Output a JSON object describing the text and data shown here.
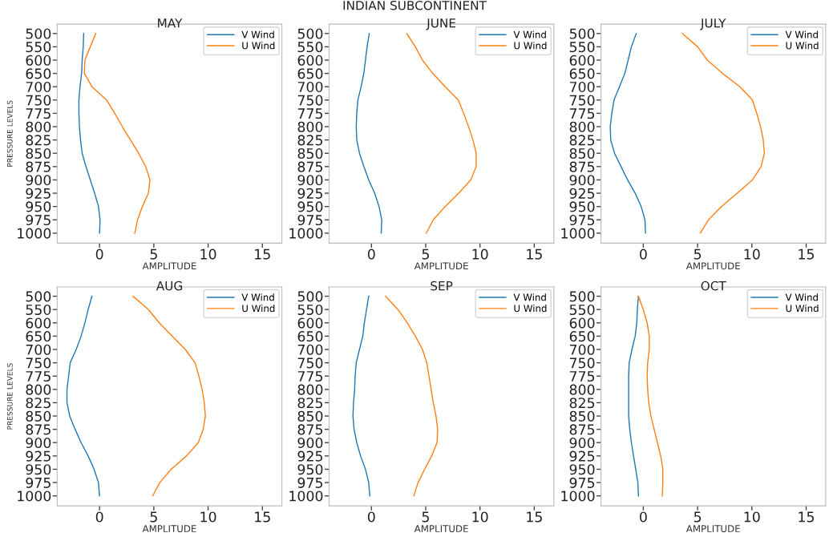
{
  "chart_data": [
    {
      "type": "line",
      "orientation": "horizontal",
      "title": "MAY",
      "xlabel": "AMPLITUDE",
      "ylabel": "PRESSURE LEVELS",
      "annotations": [
        "INDIAN SUBCONTINENT"
      ],
      "legend": "top right",
      "xlim": [
        -3.9,
        16.8
      ],
      "xticks": [
        0,
        5,
        10,
        15
      ],
      "categories": [
        "500",
        "550",
        "600",
        "650",
        "700",
        "750",
        "775",
        "800",
        "825",
        "850",
        "875",
        "900",
        "925",
        "950",
        "975",
        "1000"
      ],
      "series": [
        {
          "name": "V Wind",
          "color": "#1f77b4",
          "values": [
            -1.46,
            -1.5,
            -1.6,
            -1.65,
            -1.8,
            -1.9,
            -1.9,
            -1.85,
            -1.75,
            -1.6,
            -1.25,
            -0.85,
            -0.45,
            -0.1,
            0.05,
            0
          ]
        },
        {
          "name": "U Wind",
          "color": "#ff7f0e",
          "values": [
            -0.35,
            -0.85,
            -1.35,
            -1.4,
            -0.7,
            0.65,
            1.4,
            2.1,
            2.85,
            3.6,
            4.25,
            4.65,
            4.5,
            3.95,
            3.5,
            3.25
          ]
        }
      ]
    },
    {
      "type": "line",
      "orientation": "horizontal",
      "title": "JUNE",
      "xlabel": "AMPLITUDE",
      "legend": "top right",
      "xlim": [
        -3.9,
        16.8
      ],
      "xticks": [
        0,
        5,
        10,
        15
      ],
      "categories": [
        "500",
        "550",
        "600",
        "650",
        "700",
        "750",
        "775",
        "800",
        "825",
        "850",
        "875",
        "900",
        "925",
        "950",
        "975",
        "1000"
      ],
      "series": [
        {
          "name": "V Wind",
          "color": "#1f77b4",
          "values": [
            -0.2,
            -0.4,
            -0.55,
            -0.7,
            -0.95,
            -1.25,
            -1.35,
            -1.4,
            -1.35,
            -1.1,
            -0.7,
            -0.25,
            0.3,
            0.7,
            0.95,
            0.9
          ]
        },
        {
          "name": "U Wind",
          "color": "#ff7f0e",
          "values": [
            3.25,
            4.05,
            4.7,
            5.65,
            6.8,
            8.0,
            8.5,
            8.95,
            9.35,
            9.65,
            9.65,
            9.15,
            8.05,
            6.8,
            5.7,
            5.05
          ]
        }
      ]
    },
    {
      "type": "line",
      "orientation": "horizontal",
      "title": "JULY",
      "xlabel": "AMPLITUDE",
      "legend": "top right",
      "xlim": [
        -3.9,
        16.8
      ],
      "xticks": [
        0,
        5,
        10,
        15
      ],
      "categories": [
        "500",
        "550",
        "600",
        "650",
        "700",
        "750",
        "775",
        "800",
        "825",
        "850",
        "875",
        "900",
        "925",
        "950",
        "975",
        "1000"
      ],
      "series": [
        {
          "name": "V Wind",
          "color": "#1f77b4",
          "values": [
            -0.65,
            -1.1,
            -1.4,
            -1.7,
            -2.2,
            -2.7,
            -2.9,
            -3.05,
            -3.0,
            -2.65,
            -2.05,
            -1.45,
            -0.75,
            -0.2,
            0.15,
            0.2
          ]
        },
        {
          "name": "U Wind",
          "color": "#ff7f0e",
          "values": [
            3.6,
            5.0,
            5.9,
            7.3,
            8.9,
            10.05,
            10.45,
            10.8,
            11.05,
            11.15,
            10.85,
            10.05,
            8.65,
            7.2,
            6.0,
            5.25
          ]
        }
      ]
    },
    {
      "type": "line",
      "orientation": "horizontal",
      "title": "AUG",
      "xlabel": "AMPLITUDE",
      "ylabel": "PRESSURE LEVELS",
      "legend": "top right",
      "xlim": [
        -3.9,
        16.8
      ],
      "xticks": [
        0,
        5,
        10,
        15
      ],
      "categories": [
        "500",
        "550",
        "600",
        "650",
        "700",
        "750",
        "775",
        "800",
        "825",
        "850",
        "875",
        "900",
        "925",
        "950",
        "975",
        "1000"
      ],
      "series": [
        {
          "name": "V Wind",
          "color": "#1f77b4",
          "values": [
            -0.7,
            -1.05,
            -1.35,
            -1.7,
            -2.15,
            -2.7,
            -2.85,
            -3.0,
            -3.0,
            -2.75,
            -2.25,
            -1.7,
            -1.05,
            -0.5,
            -0.1,
            0
          ]
        },
        {
          "name": "U Wind",
          "color": "#ff7f0e",
          "values": [
            3.1,
            4.5,
            5.5,
            6.7,
            7.9,
            8.8,
            9.15,
            9.45,
            9.65,
            9.75,
            9.55,
            9.1,
            8.0,
            6.6,
            5.55,
            4.9
          ]
        }
      ]
    },
    {
      "type": "line",
      "orientation": "horizontal",
      "title": "SEP",
      "xlabel": "AMPLITUDE",
      "legend": "top right",
      "xlim": [
        -3.9,
        16.8
      ],
      "xticks": [
        0,
        5,
        10,
        15
      ],
      "categories": [
        "500",
        "550",
        "600",
        "650",
        "700",
        "750",
        "775",
        "800",
        "825",
        "850",
        "875",
        "900",
        "925",
        "950",
        "975",
        "1000"
      ],
      "series": [
        {
          "name": "V Wind",
          "color": "#1f77b4",
          "values": [
            -0.25,
            -0.45,
            -0.65,
            -0.8,
            -1.1,
            -1.4,
            -1.5,
            -1.55,
            -1.65,
            -1.7,
            -1.6,
            -1.35,
            -1.0,
            -0.55,
            -0.25,
            -0.15
          ]
        },
        {
          "name": "U Wind",
          "color": "#ff7f0e",
          "values": [
            1.3,
            2.45,
            3.3,
            4.05,
            4.7,
            5.1,
            5.3,
            5.5,
            5.7,
            5.95,
            6.1,
            6.05,
            5.55,
            4.9,
            4.3,
            3.9
          ]
        }
      ]
    },
    {
      "type": "line",
      "orientation": "horizontal",
      "title": "OCT",
      "xlabel": "AMPLITUDE",
      "legend": "top right",
      "xlim": [
        -3.9,
        16.8
      ],
      "xticks": [
        0,
        5,
        10,
        15
      ],
      "categories": [
        "500",
        "550",
        "600",
        "650",
        "700",
        "750",
        "775",
        "800",
        "825",
        "850",
        "875",
        "900",
        "925",
        "950",
        "975",
        "1000"
      ],
      "series": [
        {
          "name": "V Wind",
          "color": "#1f77b4",
          "values": [
            -0.45,
            -0.55,
            -0.6,
            -0.75,
            -1.05,
            -1.3,
            -1.35,
            -1.35,
            -1.35,
            -1.35,
            -1.25,
            -1.1,
            -0.9,
            -0.7,
            -0.5,
            -0.45
          ]
        },
        {
          "name": "U Wind",
          "color": "#ff7f0e",
          "values": [
            -0.45,
            0,
            0.35,
            0.55,
            0.55,
            0.4,
            0.35,
            0.4,
            0.5,
            0.7,
            1.0,
            1.3,
            1.6,
            1.8,
            1.8,
            1.75
          ]
        }
      ]
    }
  ]
}
